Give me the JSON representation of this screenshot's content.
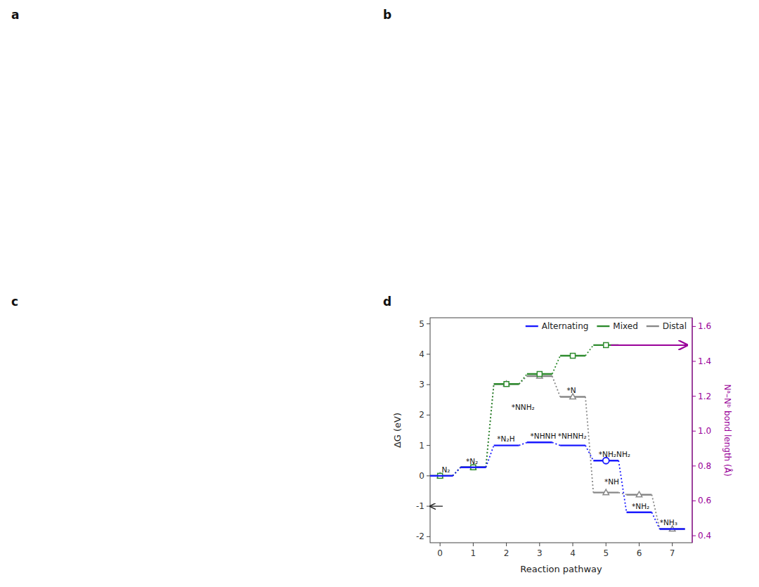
{
  "chart_data": {
    "type": "step",
    "panel_labels": [
      "a",
      "b",
      "c",
      "d"
    ],
    "xlabel": "Reaction pathway",
    "ylabel": "ΔG (eV)",
    "y2label": "Nᵃ–Nᵇ bond length (Å)",
    "xlim": [
      -0.3,
      7.6
    ],
    "ylim": [
      -2.2,
      5.2
    ],
    "y2lim": [
      0.36,
      1.65
    ],
    "xticks": [
      0,
      1,
      2,
      3,
      4,
      5,
      6,
      7
    ],
    "yticks": [
      -2,
      -1,
      0,
      1,
      2,
      3,
      4,
      5
    ],
    "y2ticks": [
      0.4,
      0.6,
      0.8,
      {
        "value": 1.0,
        "label": "1.0"
      },
      1.2,
      1.4,
      1.6
    ],
    "grid": false,
    "legend": "upper right",
    "series": [
      {
        "name": "Alternating",
        "color": "#1a1aff",
        "marker": "none",
        "highlight_index": 5,
        "x": [
          0,
          1,
          2,
          3,
          4,
          5,
          6,
          7
        ],
        "values": [
          0.0,
          0.28,
          1.0,
          1.1,
          1.0,
          0.5,
          -1.2,
          -1.75
        ]
      },
      {
        "name": "Mixed",
        "color": "#2e8b2e",
        "marker": "square",
        "x": [
          0,
          1,
          2,
          3,
          4,
          5
        ],
        "values": [
          0.0,
          0.28,
          3.02,
          3.35,
          3.95,
          4.3
        ]
      },
      {
        "name": "Distal",
        "color": "#888888",
        "marker": "triangle",
        "x": [
          0,
          1,
          2,
          3,
          4,
          5,
          6,
          7
        ],
        "values": [
          0.0,
          0.28,
          3.02,
          3.28,
          2.6,
          -0.55,
          -0.62,
          -1.75
        ]
      }
    ],
    "bond_arrow": {
      "x0": 5.15,
      "x1": 7.45,
      "y": 4.3,
      "color": "#990099"
    },
    "axis_arrow": {
      "x0": 0.08,
      "x1": -0.3,
      "y": -1.0
    },
    "annotations": [
      {
        "text": "N₂",
        "x": 0.05,
        "y": 0.12
      },
      {
        "text": "*N₂",
        "x": 0.78,
        "y": 0.4
      },
      {
        "text": "*N₂H",
        "x": 1.72,
        "y": 1.13
      },
      {
        "text": "*NHNH",
        "x": 2.72,
        "y": 1.22
      },
      {
        "text": "*NHNH₂",
        "x": 3.55,
        "y": 1.22
      },
      {
        "text": "*NNH₂",
        "x": 2.15,
        "y": 2.18
      },
      {
        "text": "*N",
        "x": 3.82,
        "y": 2.72
      },
      {
        "text": "*NH₂NH₂",
        "x": 4.78,
        "y": 0.62
      },
      {
        "text": "*NH",
        "x": 4.95,
        "y": -0.28
      },
      {
        "text": "*NH₂",
        "x": 5.78,
        "y": -1.08
      },
      {
        "text": "*NH₃",
        "x": 6.62,
        "y": -1.62
      }
    ]
  }
}
